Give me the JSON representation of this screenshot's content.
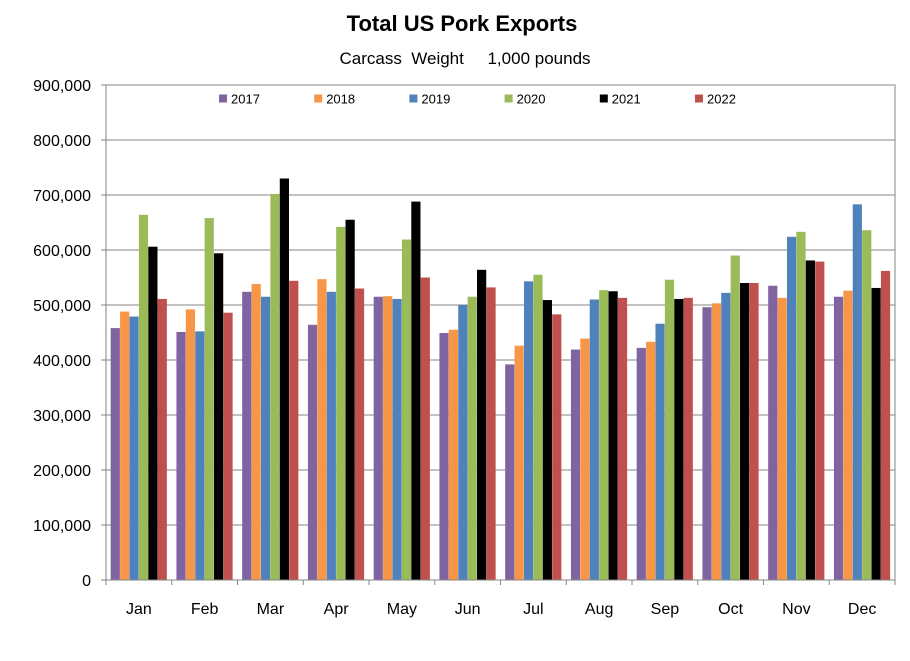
{
  "chart_data": {
    "type": "bar",
    "title": "Total US Pork Exports",
    "subtitle": "Carcass  Weight     1,000 pounds",
    "xlabel": "",
    "ylabel": "",
    "ylim": [
      0,
      900000
    ],
    "yticks": [
      "0",
      "100,000",
      "200,000",
      "300,000",
      "400,000",
      "500,000",
      "600,000",
      "700,000",
      "800,000",
      "900,000"
    ],
    "grid": true,
    "legend_position": "top",
    "categories": [
      "Jan",
      "Feb",
      "Mar",
      "Apr",
      "May",
      "Jun",
      "Jul",
      "Aug",
      "Sep",
      "Oct",
      "Nov",
      "Dec"
    ],
    "series": [
      {
        "name": "2017",
        "color": "#8064A2",
        "values": [
          458000,
          451000,
          524000,
          464000,
          515000,
          449000,
          392000,
          419000,
          422000,
          496000,
          535000,
          515000
        ]
      },
      {
        "name": "2018",
        "color": "#F79646",
        "values": [
          488000,
          492000,
          538000,
          547000,
          516000,
          455000,
          426000,
          439000,
          433000,
          503000,
          513000,
          526000
        ]
      },
      {
        "name": "2019",
        "color": "#4F81BD",
        "values": [
          479000,
          452000,
          515000,
          524000,
          511000,
          500000,
          543000,
          510000,
          466000,
          522000,
          624000,
          683000
        ]
      },
      {
        "name": "2020",
        "color": "#9BBB59",
        "values": [
          664000,
          658000,
          702000,
          642000,
          619000,
          515000,
          555000,
          527000,
          546000,
          590000,
          633000,
          636000
        ]
      },
      {
        "name": "2021",
        "color": "#000000",
        "values": [
          606000,
          594000,
          730000,
          655000,
          688000,
          564000,
          509000,
          525000,
          511000,
          540000,
          581000,
          531000
        ]
      },
      {
        "name": "2022",
        "color": "#C0504D",
        "values": [
          511000,
          486000,
          544000,
          530000,
          550000,
          532000,
          483000,
          513000,
          513000,
          540000,
          579000,
          562000
        ]
      }
    ]
  }
}
